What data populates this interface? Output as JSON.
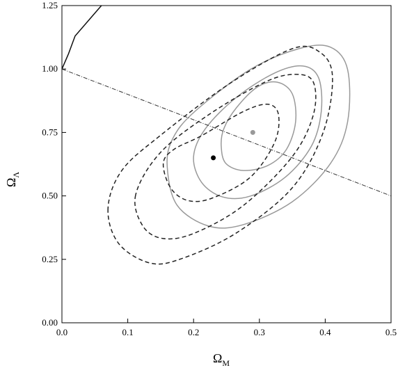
{
  "chart_data": {
    "type": "contour",
    "xlabel": "Ω",
    "xlabel_sub": "M",
    "ylabel": "Ω",
    "ylabel_sub": "Λ",
    "xlim": [
      0,
      0.5
    ],
    "ylim": [
      0,
      1.25
    ],
    "xticks": [
      {
        "value": 0,
        "label": "0.0"
      },
      {
        "value": 0.1,
        "label": "0.1"
      },
      {
        "value": 0.2,
        "label": "0.2"
      },
      {
        "value": 0.3,
        "label": "0.3"
      },
      {
        "value": 0.4,
        "label": "0.4"
      },
      {
        "value": 0.5,
        "label": "0.5"
      }
    ],
    "yticks": [
      {
        "value": 0,
        "label": "0.00"
      },
      {
        "value": 0.25,
        "label": "0.25"
      },
      {
        "value": 0.5,
        "label": "0.50"
      },
      {
        "value": 0.75,
        "label": "0.75"
      },
      {
        "value": 1,
        "label": "1.00"
      },
      {
        "value": 1.25,
        "label": "1.25"
      }
    ],
    "series": [
      {
        "style": "solid",
        "color": "#999999",
        "closed": true,
        "x": [
          0.242,
          0.249,
          0.276,
          0.313,
          0.341,
          0.355,
          0.35,
          0.327,
          0.297,
          0.265,
          0.246
        ],
        "y": [
          0.696,
          0.628,
          0.6,
          0.62,
          0.683,
          0.792,
          0.902,
          0.948,
          0.929,
          0.847,
          0.765
        ]
      },
      {
        "style": "solid",
        "color": "#999999",
        "closed": true,
        "x": [
          0.2,
          0.212,
          0.244,
          0.286,
          0.339,
          0.379,
          0.394,
          0.39,
          0.366,
          0.323,
          0.265,
          0.218
        ],
        "y": [
          0.655,
          0.554,
          0.496,
          0.499,
          0.573,
          0.696,
          0.833,
          0.965,
          1.012,
          0.984,
          0.888,
          0.765
        ]
      },
      {
        "style": "solid",
        "color": "#999999",
        "closed": true,
        "x": [
          0.16,
          0.175,
          0.223,
          0.276,
          0.35,
          0.408,
          0.434,
          0.434,
          0.408,
          0.36,
          0.286,
          0.202,
          0.168
        ],
        "y": [
          0.614,
          0.463,
          0.381,
          0.387,
          0.477,
          0.628,
          0.792,
          0.998,
          1.086,
          1.08,
          0.998,
          0.833,
          0.724
        ]
      },
      {
        "style": "dashed",
        "color": "#222222",
        "closed": true,
        "x": [
          0.154,
          0.165,
          0.191,
          0.228,
          0.286,
          0.323,
          0.329,
          0.313,
          0.276,
          0.212,
          0.17
        ],
        "y": [
          0.628,
          0.532,
          0.482,
          0.491,
          0.573,
          0.71,
          0.82,
          0.861,
          0.833,
          0.737,
          0.683
        ]
      },
      {
        "style": "dashed",
        "color": "#222222",
        "closed": true,
        "x": [
          0.112,
          0.123,
          0.154,
          0.202,
          0.276,
          0.35,
          0.382,
          0.382,
          0.355,
          0.308,
          0.223,
          0.149
        ],
        "y": [
          0.504,
          0.381,
          0.332,
          0.354,
          0.463,
          0.655,
          0.82,
          0.948,
          0.979,
          0.948,
          0.82,
          0.669
        ]
      },
      {
        "style": "dashed",
        "color": "#222222",
        "closed": true,
        "x": [
          0.07,
          0.086,
          0.133,
          0.181,
          0.265,
          0.35,
          0.397,
          0.411,
          0.392,
          0.35,
          0.255,
          0.149,
          0.091
        ],
        "y": [
          0.45,
          0.313,
          0.236,
          0.252,
          0.354,
          0.532,
          0.751,
          0.97,
          1.066,
          1.08,
          0.943,
          0.737,
          0.6
        ]
      },
      {
        "style": "dashdot",
        "color": "#333333",
        "closed": false,
        "x": [
          0,
          0.5
        ],
        "y": [
          1,
          0.5
        ]
      },
      {
        "style": "solid",
        "color": "#111111",
        "closed": false,
        "x": [
          0,
          0.01,
          0.02,
          0.04,
          0.06
        ],
        "y": [
          1,
          1.06,
          1.13,
          1.19,
          1.25
        ]
      }
    ],
    "points": [
      {
        "color": "#999999",
        "x": 0.29,
        "y": 0.75
      },
      {
        "color": "#000000",
        "x": 0.23,
        "y": 0.65
      }
    ]
  }
}
